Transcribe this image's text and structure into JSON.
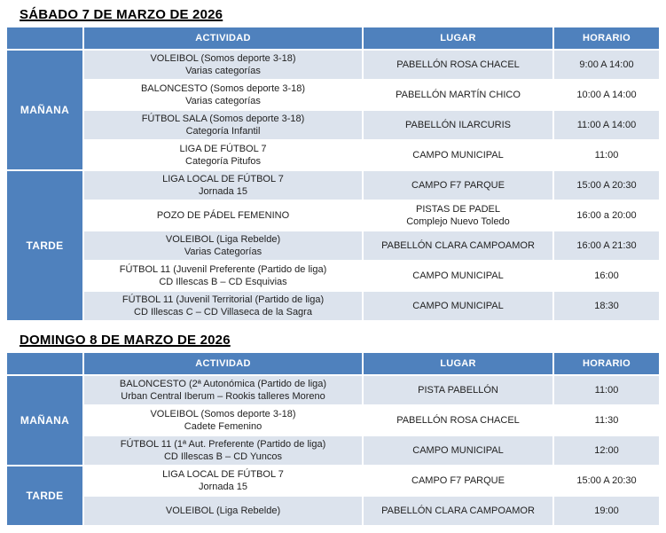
{
  "colors": {
    "header_blue": "#4f81bd",
    "row_shade": "#dce3ed"
  },
  "saturday": {
    "title": "SÁBADO 7 DE MARZO DE 2026",
    "headers": {
      "actividad": "ACTIVIDAD",
      "lugar": "LUGAR",
      "horario": "HORARIO"
    },
    "morning_label": "MAÑANA",
    "afternoon_label": "TARDE",
    "rows": [
      {
        "a1": "VOLEIBOL (Somos deporte 3-18)",
        "a2": "Varias categorías",
        "l1": "PABELLÓN ROSA CHACEL",
        "l2": "",
        "h": "9:00 A 14:00"
      },
      {
        "a1": "BALONCESTO (Somos deporte 3-18)",
        "a2": "Varias categorías",
        "l1": "PABELLÓN MARTÍN CHICO",
        "l2": "",
        "h": "10:00 A 14:00"
      },
      {
        "a1": "FÚTBOL SALA (Somos deporte 3-18)",
        "a2": "Categoría Infantil",
        "l1": "PABELLÓN ILARCURIS",
        "l2": "",
        "h": "11:00 A 14:00"
      },
      {
        "a1": "LIGA DE FÚTBOL 7",
        "a2": "Categoría Pitufos",
        "l1": "CAMPO MUNICIPAL",
        "l2": "",
        "h": "11:00"
      },
      {
        "a1": "LIGA LOCAL DE FÚTBOL 7",
        "a2": "Jornada 15",
        "l1": "CAMPO F7 PARQUE",
        "l2": "",
        "h": "15:00 A 20:30"
      },
      {
        "a1": "POZO DE PÁDEL FEMENINO",
        "a2": "",
        "l1": "PISTAS DE PADEL",
        "l2": "Complejo Nuevo Toledo",
        "h": "16:00 a 20:00"
      },
      {
        "a1": "VOLEIBOL (Liga Rebelde)",
        "a2": "Varias Categorías",
        "l1": "PABELLÓN CLARA CAMPOAMOR",
        "l2": "",
        "h": "16:00 A 21:30"
      },
      {
        "a1": "FÚTBOL 11 (Juvenil Preferente (Partido de liga)",
        "a2": "CD Illescas B – CD Esquivias",
        "l1": "CAMPO MUNICIPAL",
        "l2": "",
        "h": "16:00"
      },
      {
        "a1": "FÚTBOL 11 (Juvenil Territorial (Partido de liga)",
        "a2": "CD Illescas C – CD Villaseca de la Sagra",
        "l1": "CAMPO MUNICIPAL",
        "l2": "",
        "h": "18:30"
      }
    ]
  },
  "sunday": {
    "title": "DOMINGO 8 DE MARZO DE 2026",
    "headers": {
      "actividad": "ACTIVIDAD",
      "lugar": "LUGAR",
      "horario": "HORARIO"
    },
    "morning_label": "MAÑANA",
    "afternoon_label": "TARDE",
    "rows": [
      {
        "a1": "BALONCESTO (2ª Autonómica (Partido de liga)",
        "a2": "Urban Central Iberum – Rookis talleres Moreno",
        "l1": "PISTA PABELLÓN",
        "l2": "",
        "h": "11:00"
      },
      {
        "a1": "VOLEIBOL (Somos deporte 3-18)",
        "a2": "Cadete Femenino",
        "l1": "PABELLÓN ROSA CHACEL",
        "l2": "",
        "h": "11:30"
      },
      {
        "a1": "FÚTBOL 11 (1ª Aut. Preferente (Partido de liga)",
        "a2": "CD Illescas B – CD Yuncos",
        "l1": "CAMPO MUNICIPAL",
        "l2": "",
        "h": "12:00"
      },
      {
        "a1": "LIGA LOCAL DE FÚTBOL 7",
        "a2": "Jornada 15",
        "l1": "CAMPO F7 PARQUE",
        "l2": "",
        "h": "15:00 A 20:30"
      },
      {
        "a1": "VOLEIBOL (Liga Rebelde)",
        "a2": "",
        "l1": "PABELLÓN CLARA CAMPOAMOR",
        "l2": "",
        "h": "19:00"
      }
    ]
  }
}
